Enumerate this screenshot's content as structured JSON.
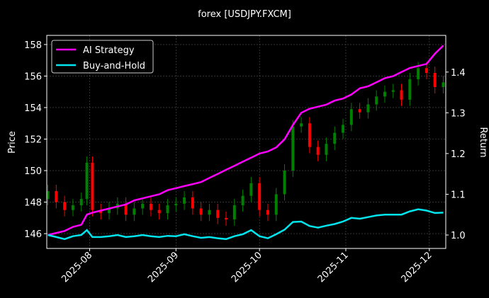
{
  "chart_data": {
    "type": "candlestick-returns",
    "title": "forex [USDJPY.FXCM]",
    "ylabel": "Price",
    "y2label": "Return",
    "x": [
      16,
      19,
      22,
      25,
      28,
      30,
      32,
      35,
      38,
      41,
      44,
      47,
      50,
      53,
      56,
      59,
      62,
      65,
      68,
      71,
      74,
      77,
      80,
      83,
      86,
      89,
      92,
      95,
      98,
      101,
      104,
      107,
      110,
      113,
      116,
      119,
      122,
      125,
      128,
      131,
      134,
      137,
      140,
      143,
      146,
      149,
      152,
      155,
      158
    ],
    "open": [
      148.2,
      148.7,
      148.0,
      147.5,
      147.8,
      148.2,
      150.5,
      147.5,
      147.3,
      147.6,
      147.9,
      147.2,
      147.6,
      147.9,
      147.5,
      147.3,
      147.8,
      147.9,
      148.3,
      147.6,
      147.2,
      147.5,
      147.0,
      146.9,
      147.8,
      148.4,
      149.2,
      147.5,
      147.2,
      148.5,
      150.0,
      152.8,
      153.0,
      151.5,
      151.0,
      151.7,
      152.4,
      152.9,
      153.9,
      153.7,
      154.2,
      154.7,
      155.0,
      155.1,
      154.5,
      155.8,
      156.5,
      156.2,
      155.3
    ],
    "high": [
      149.1,
      149.1,
      148.4,
      148.2,
      148.6,
      150.9,
      150.9,
      147.9,
      148.0,
      148.3,
      148.3,
      148.0,
      148.3,
      148.3,
      147.9,
      148.2,
      148.3,
      148.7,
      148.7,
      148.0,
      147.9,
      147.9,
      147.4,
      148.2,
      148.8,
      149.6,
      149.6,
      147.9,
      148.9,
      150.4,
      153.2,
      153.4,
      153.4,
      151.9,
      152.1,
      152.8,
      153.3,
      154.3,
      154.3,
      154.6,
      155.1,
      155.4,
      155.5,
      155.5,
      156.2,
      156.9,
      156.9,
      156.6,
      156.0
    ],
    "low": [
      147.8,
      147.6,
      147.1,
      147.1,
      147.4,
      147.8,
      147.1,
      146.9,
      146.9,
      147.2,
      146.8,
      146.8,
      147.2,
      147.1,
      146.9,
      146.9,
      147.4,
      147.5,
      147.2,
      146.8,
      146.8,
      146.6,
      146.5,
      146.5,
      147.4,
      148.0,
      147.1,
      146.8,
      146.8,
      148.1,
      149.6,
      152.4,
      151.1,
      150.6,
      150.6,
      151.3,
      152.0,
      152.5,
      153.3,
      153.3,
      153.8,
      154.3,
      154.6,
      154.1,
      154.1,
      155.4,
      155.8,
      154.9,
      154.9
    ],
    "close": [
      148.7,
      148.0,
      147.5,
      147.8,
      148.2,
      150.5,
      147.5,
      147.3,
      147.6,
      147.9,
      147.2,
      147.6,
      147.9,
      147.5,
      147.3,
      147.8,
      147.9,
      148.3,
      147.6,
      147.2,
      147.5,
      147.0,
      146.9,
      147.8,
      148.4,
      149.2,
      147.5,
      147.2,
      148.5,
      150.0,
      152.8,
      153.0,
      151.5,
      151.0,
      151.7,
      152.4,
      152.9,
      153.9,
      153.7,
      154.2,
      154.7,
      155.0,
      155.1,
      154.5,
      155.8,
      156.5,
      156.2,
      155.3,
      155.6
    ],
    "up_color": "#008000",
    "down_color": "#ff0000",
    "series": [
      {
        "name": "AI Strategy",
        "color": "#ff00ff",
        "axis": "y2",
        "values": [
          1.0,
          1.005,
          1.01,
          1.02,
          1.025,
          1.05,
          1.055,
          1.06,
          1.065,
          1.07,
          1.075,
          1.085,
          1.09,
          1.095,
          1.1,
          1.11,
          1.115,
          1.12,
          1.125,
          1.13,
          1.14,
          1.15,
          1.16,
          1.17,
          1.18,
          1.19,
          1.2,
          1.205,
          1.215,
          1.235,
          1.27,
          1.3,
          1.31,
          1.315,
          1.32,
          1.33,
          1.335,
          1.345,
          1.36,
          1.365,
          1.375,
          1.385,
          1.39,
          1.4,
          1.41,
          1.415,
          1.42,
          1.445,
          1.465
        ]
      },
      {
        "name": "Buy-and-Hold",
        "color": "#00e5ee",
        "axis": "y2",
        "values": [
          1.0,
          0.995,
          0.99,
          0.997,
          1.0,
          1.012,
          0.995,
          0.995,
          0.997,
          1.0,
          0.995,
          0.997,
          1.0,
          0.997,
          0.995,
          0.998,
          0.997,
          1.002,
          0.997,
          0.993,
          0.995,
          0.992,
          0.99,
          0.997,
          1.002,
          1.012,
          0.997,
          0.992,
          1.002,
          1.013,
          1.032,
          1.033,
          1.022,
          1.018,
          1.023,
          1.027,
          1.033,
          1.042,
          1.04,
          1.044,
          1.048,
          1.05,
          1.05,
          1.05,
          1.058,
          1.063,
          1.06,
          1.054,
          1.055
        ]
      }
    ],
    "xlim": [
      15.6,
      158.9
    ],
    "xticks": [
      {
        "value": 31,
        "label": "2025-08"
      },
      {
        "value": 62,
        "label": "2025-09"
      },
      {
        "value": 92,
        "label": "2025-10"
      },
      {
        "value": 123,
        "label": "2025-11"
      },
      {
        "value": 153,
        "label": "2025-12"
      }
    ],
    "ylim": [
      145.06,
      158.58
    ],
    "yticks": [
      146,
      148,
      150,
      152,
      154,
      156,
      158
    ],
    "y2lim": [
      0.967,
      1.49
    ],
    "y2ticks": [
      {
        "value": 1,
        "label": "1.0"
      },
      1.1,
      1.2,
      1.3,
      1.4
    ],
    "grid": true,
    "legend": "upper left"
  }
}
